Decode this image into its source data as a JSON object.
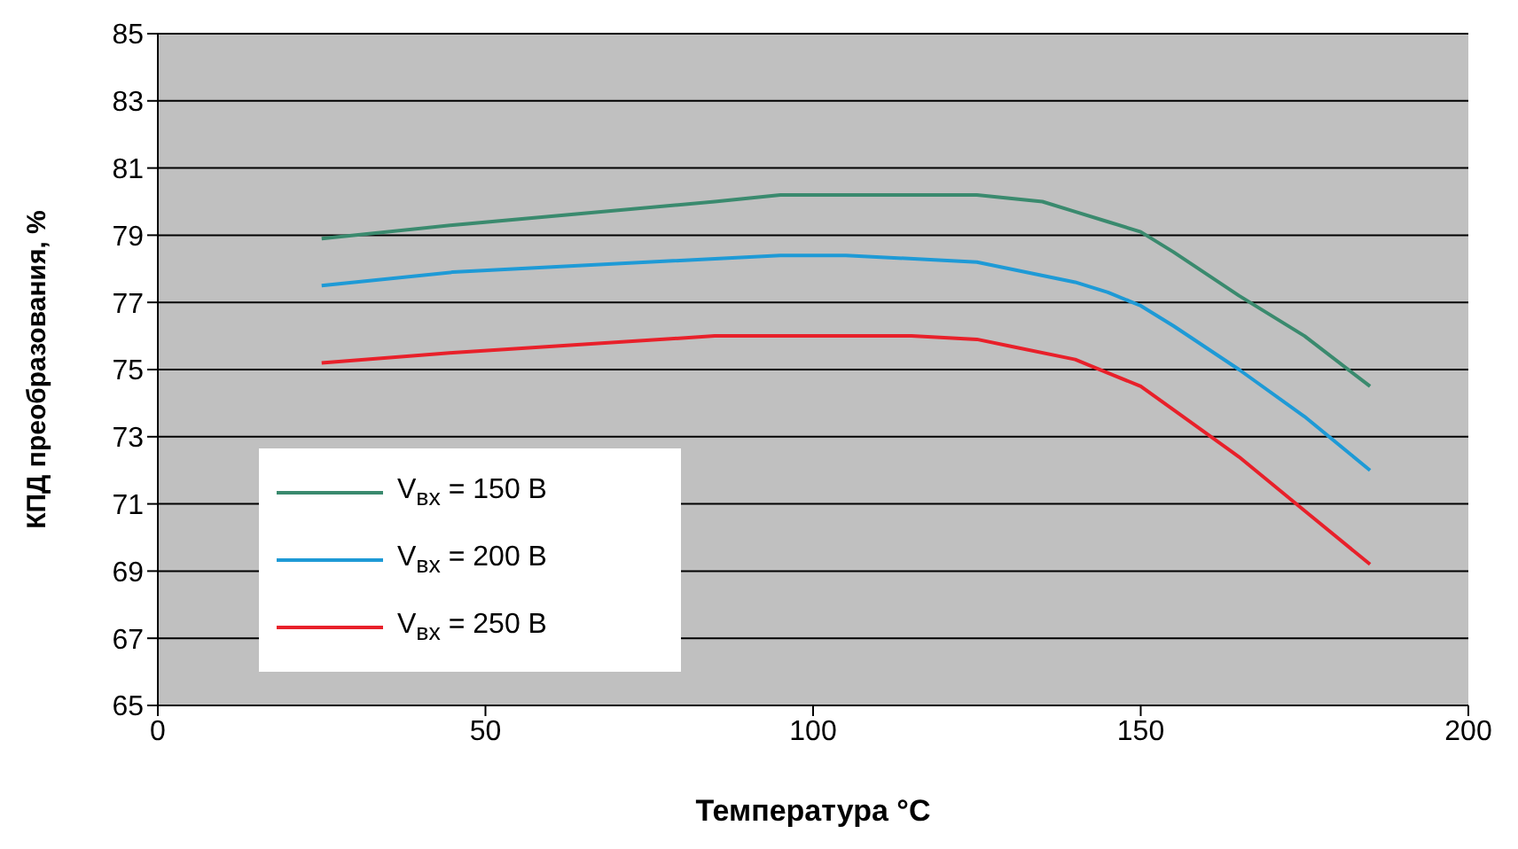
{
  "chart_data": {
    "type": "line",
    "xlabel": "Температура °C",
    "ylabel": "КПД преобразования, %",
    "xlim": [
      0,
      200
    ],
    "xticks": [
      0,
      50,
      100,
      150,
      200
    ],
    "ylim": [
      65,
      85
    ],
    "yticks": [
      65,
      67,
      69,
      71,
      73,
      75,
      77,
      79,
      81,
      83,
      85
    ],
    "grid": "y",
    "legend": "bottom left",
    "marker": "none",
    "line_style": "solid",
    "series": [
      {
        "name": "V$_{вх}$ = 150 В",
        "color": "#3a8a6e",
        "x": [
          25,
          45,
          85,
          95,
          125,
          135,
          140,
          145,
          150,
          155,
          165,
          175,
          185
        ],
        "values": [
          78.9,
          79.3,
          80.0,
          80.2,
          80.2,
          80.0,
          79.7,
          79.4,
          79.1,
          78.5,
          77.2,
          76.0,
          74.5
        ]
      },
      {
        "name": "V$_{вх}$ = 200 В",
        "color": "#1e9ad6",
        "x": [
          25,
          45,
          95,
          105,
          125,
          140,
          145,
          150,
          155,
          165,
          175,
          185
        ],
        "values": [
          77.5,
          77.9,
          78.4,
          78.4,
          78.2,
          77.6,
          77.3,
          76.9,
          76.3,
          75.0,
          73.6,
          72.0
        ]
      },
      {
        "name": "V$_{вх}$ = 250 В",
        "color": "#e8202a",
        "x": [
          25,
          45,
          85,
          115,
          125,
          130,
          140,
          145,
          150,
          155,
          165,
          175,
          185
        ],
        "values": [
          75.2,
          75.5,
          76.0,
          76.0,
          75.9,
          75.7,
          75.3,
          74.9,
          74.5,
          73.8,
          72.4,
          70.8,
          69.2
        ]
      }
    ]
  }
}
